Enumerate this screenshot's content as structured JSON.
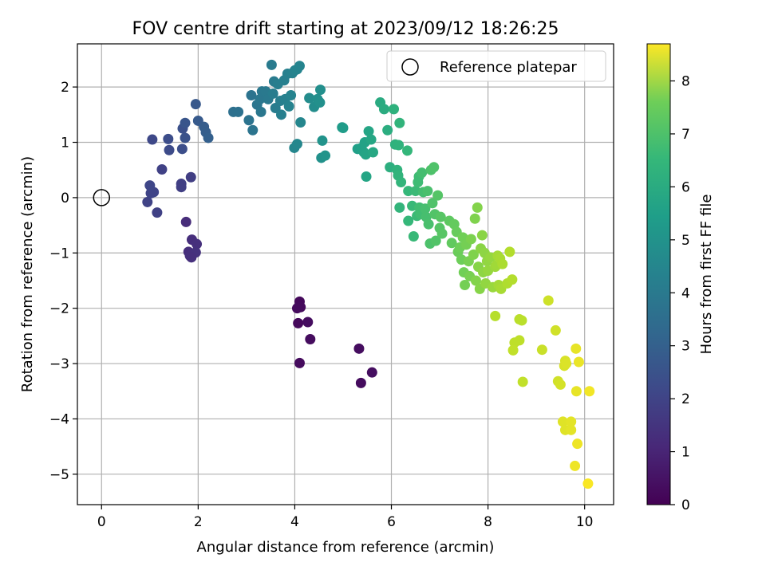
{
  "chart_data": {
    "type": "scatter",
    "title": "FOV centre drift starting at 2023/09/12 18:26:25",
    "xlabel": "Angular distance from reference (arcmin)",
    "ylabel": "Rotation from reference (arcmin)",
    "xlim": [
      -0.5,
      10.6
    ],
    "ylim": [
      -5.55,
      2.78
    ],
    "x_ticks": [
      0,
      2,
      4,
      6,
      8,
      10
    ],
    "y_ticks": [
      2,
      1,
      0,
      -1,
      -2,
      -3,
      -4,
      -5
    ],
    "x_tick_labels": [
      "0",
      "2",
      "4",
      "6",
      "8",
      "10"
    ],
    "y_tick_labels": [
      "2",
      "1",
      "0",
      "−1",
      "−2",
      "−3",
      "−4",
      "−5"
    ],
    "grid": true,
    "legend": {
      "position": "top-right",
      "entries": [
        "Reference platepar"
      ]
    },
    "reference_point": {
      "x": 0,
      "y": 0,
      "label": "Reference platepar"
    },
    "colorbar": {
      "label": "Hours from first FF file",
      "colormap": "viridis",
      "min": 0,
      "max": 8.7,
      "ticks": [
        0,
        1,
        2,
        3,
        4,
        5,
        6,
        7,
        8
      ],
      "tick_labels": [
        "0",
        "1",
        "2",
        "3",
        "4",
        "5",
        "6",
        "7",
        "8"
      ]
    },
    "points": [
      [
        4.1,
        -1.88,
        0.2
      ],
      [
        4.12,
        -1.98,
        0.22
      ],
      [
        4.05,
        -2.0,
        0.25
      ],
      [
        4.07,
        -2.27,
        0.2
      ],
      [
        4.27,
        -2.25,
        0.3
      ],
      [
        4.32,
        -2.56,
        0.28
      ],
      [
        4.1,
        -2.99,
        0.25
      ],
      [
        5.33,
        -2.73,
        0.3
      ],
      [
        5.37,
        -3.35,
        0.28
      ],
      [
        5.6,
        -3.16,
        0.32
      ],
      [
        1.75,
        -0.44,
        1.1
      ],
      [
        1.87,
        -0.76,
        1.15
      ],
      [
        1.97,
        -0.84,
        1.2
      ],
      [
        1.8,
        -0.98,
        1.15
      ],
      [
        1.83,
        -1.05,
        1.2
      ],
      [
        1.88,
        -1.02,
        1.2
      ],
      [
        1.95,
        -0.99,
        1.25
      ],
      [
        1.86,
        -1.08,
        1.2
      ],
      [
        1.85,
        0.37,
        1.6
      ],
      [
        1.65,
        0.25,
        1.65
      ],
      [
        1.65,
        0.19,
        1.65
      ],
      [
        1.25,
        0.51,
        1.7
      ],
      [
        1.15,
        -0.27,
        1.7
      ],
      [
        0.95,
        -0.08,
        1.75
      ],
      [
        1.02,
        0.08,
        1.8
      ],
      [
        1.08,
        0.1,
        1.8
      ],
      [
        1.0,
        0.22,
        1.85
      ],
      [
        1.05,
        1.05,
        1.9
      ],
      [
        1.4,
        0.86,
        2.0
      ],
      [
        1.38,
        1.06,
        2.05
      ],
      [
        1.67,
        0.88,
        2.1
      ],
      [
        1.68,
        1.25,
        2.15
      ],
      [
        1.73,
        1.08,
        2.2
      ],
      [
        1.73,
        1.35,
        2.3
      ],
      [
        1.95,
        1.69,
        2.4
      ],
      [
        2.0,
        1.39,
        2.45
      ],
      [
        2.12,
        1.28,
        2.55
      ],
      [
        2.16,
        1.18,
        2.6
      ],
      [
        2.21,
        1.08,
        2.65
      ],
      [
        2.73,
        1.55,
        3.2
      ],
      [
        2.83,
        1.55,
        3.25
      ],
      [
        3.1,
        1.85,
        3.3
      ],
      [
        3.05,
        1.4,
        3.3
      ],
      [
        3.13,
        1.22,
        3.35
      ],
      [
        3.22,
        1.68,
        3.4
      ],
      [
        3.28,
        1.78,
        3.45
      ],
      [
        3.3,
        1.55,
        3.45
      ],
      [
        3.32,
        1.92,
        3.5
      ],
      [
        3.4,
        1.92,
        3.55
      ],
      [
        3.45,
        1.78,
        3.55
      ],
      [
        3.52,
        2.4,
        3.6
      ],
      [
        3.57,
        2.1,
        3.6
      ],
      [
        3.55,
        1.88,
        3.65
      ],
      [
        3.6,
        1.62,
        3.65
      ],
      [
        3.65,
        2.05,
        3.7
      ],
      [
        3.7,
        1.75,
        3.7
      ],
      [
        3.72,
        1.5,
        3.75
      ],
      [
        3.78,
        2.12,
        3.75
      ],
      [
        3.8,
        1.78,
        3.8
      ],
      [
        3.85,
        2.24,
        3.8
      ],
      [
        3.88,
        1.65,
        3.85
      ],
      [
        3.95,
        2.25,
        3.85
      ],
      [
        3.92,
        1.85,
        3.9
      ],
      [
        4.0,
        2.3,
        3.9
      ],
      [
        4.05,
        2.32,
        3.95
      ],
      [
        4.1,
        2.38,
        3.95
      ],
      [
        4.12,
        1.36,
        4.0
      ],
      [
        3.99,
        0.9,
        4.0
      ],
      [
        4.05,
        0.97,
        4.05
      ],
      [
        4.3,
        1.8,
        4.2
      ],
      [
        4.4,
        1.64,
        4.25
      ],
      [
        4.47,
        1.78,
        4.3
      ],
      [
        4.53,
        1.95,
        4.3
      ],
      [
        4.52,
        1.72,
        4.35
      ],
      [
        4.55,
        0.72,
        4.4
      ],
      [
        4.57,
        1.03,
        4.45
      ],
      [
        4.63,
        0.76,
        4.5
      ],
      [
        4.98,
        1.27,
        4.7
      ],
      [
        5.0,
        1.26,
        4.75
      ],
      [
        5.3,
        0.88,
        4.9
      ],
      [
        5.38,
        0.9,
        4.95
      ],
      [
        5.43,
        0.82,
        5.0
      ],
      [
        5.45,
        1.0,
        5.0
      ],
      [
        5.47,
        0.78,
        5.05
      ],
      [
        5.48,
        0.38,
        5.1
      ],
      [
        5.53,
        1.2,
        5.1
      ],
      [
        5.58,
        1.05,
        5.15
      ],
      [
        5.62,
        0.82,
        5.2
      ],
      [
        5.77,
        1.72,
        5.3
      ],
      [
        5.85,
        1.6,
        5.35
      ],
      [
        5.92,
        1.22,
        5.4
      ],
      [
        5.97,
        0.55,
        5.45
      ],
      [
        6.05,
        1.6,
        5.55
      ],
      [
        6.08,
        0.96,
        5.55
      ],
      [
        6.12,
        0.5,
        5.6
      ],
      [
        6.15,
        0.95,
        5.6
      ],
      [
        6.14,
        0.4,
        5.65
      ],
      [
        6.17,
        1.35,
        5.65
      ],
      [
        6.2,
        0.28,
        5.7
      ],
      [
        6.17,
        -0.18,
        5.7
      ],
      [
        6.33,
        0.85,
        5.75
      ],
      [
        6.35,
        0.12,
        5.8
      ],
      [
        6.35,
        -0.42,
        5.8
      ],
      [
        6.43,
        -0.15,
        5.85
      ],
      [
        6.46,
        -0.7,
        5.85
      ],
      [
        6.5,
        0.12,
        5.9
      ],
      [
        6.53,
        -0.33,
        5.9
      ],
      [
        6.55,
        0.28,
        5.95
      ],
      [
        6.57,
        0.38,
        5.95
      ],
      [
        6.58,
        -0.18,
        6.0
      ],
      [
        6.6,
        -0.3,
        6.0
      ],
      [
        6.63,
        0.45,
        6.05
      ],
      [
        6.66,
        0.1,
        6.05
      ],
      [
        6.7,
        -0.2,
        6.1
      ],
      [
        6.72,
        -0.35,
        6.1
      ],
      [
        6.75,
        0.12,
        6.15
      ],
      [
        6.77,
        -0.48,
        6.15
      ],
      [
        6.8,
        -0.83,
        6.2
      ],
      [
        6.82,
        0.5,
        6.2
      ],
      [
        6.85,
        -0.1,
        6.25
      ],
      [
        6.88,
        0.55,
        6.25
      ],
      [
        6.9,
        -0.3,
        6.3
      ],
      [
        6.92,
        -0.78,
        6.3
      ],
      [
        6.96,
        0.04,
        6.35
      ],
      [
        7.0,
        -0.55,
        6.35
      ],
      [
        7.02,
        -0.35,
        6.4
      ],
      [
        7.05,
        -0.65,
        6.4
      ],
      [
        7.2,
        -0.42,
        6.5
      ],
      [
        7.25,
        -0.82,
        6.55
      ],
      [
        7.3,
        -0.48,
        6.6
      ],
      [
        7.35,
        -0.62,
        6.65
      ],
      [
        7.38,
        -0.98,
        6.7
      ],
      [
        7.42,
        -0.9,
        6.75
      ],
      [
        7.45,
        -1.12,
        6.75
      ],
      [
        7.48,
        -0.72,
        6.8
      ],
      [
        7.5,
        -1.35,
        6.8
      ],
      [
        7.52,
        -1.58,
        6.85
      ],
      [
        7.55,
        -0.85,
        6.85
      ],
      [
        7.6,
        -1.15,
        6.9
      ],
      [
        7.62,
        -1.42,
        6.9
      ],
      [
        7.65,
        -0.75,
        6.95
      ],
      [
        7.7,
        -1.03,
        7.0
      ],
      [
        7.73,
        -0.38,
        7.0
      ],
      [
        7.75,
        -1.5,
        7.05
      ],
      [
        7.78,
        -0.18,
        7.05
      ],
      [
        7.8,
        -1.25,
        7.1
      ],
      [
        7.83,
        -1.65,
        7.1
      ],
      [
        7.85,
        -0.92,
        7.15
      ],
      [
        7.88,
        -0.68,
        7.15
      ],
      [
        7.9,
        -1.35,
        7.2
      ],
      [
        7.93,
        -1.0,
        7.2
      ],
      [
        7.95,
        -1.55,
        7.25
      ],
      [
        7.98,
        -1.15,
        7.25
      ],
      [
        8.0,
        -1.32,
        7.3
      ],
      [
        8.05,
        -1.08,
        7.3
      ],
      [
        8.1,
        -1.62,
        7.35
      ],
      [
        8.15,
        -1.25,
        7.4
      ],
      [
        8.18,
        -1.22,
        7.45
      ],
      [
        8.2,
        -1.05,
        7.5
      ],
      [
        8.22,
        -1.58,
        7.5
      ],
      [
        8.25,
        -1.1,
        7.55
      ],
      [
        8.27,
        -1.65,
        7.55
      ],
      [
        8.3,
        -1.2,
        7.6
      ],
      [
        8.4,
        -1.55,
        7.65
      ],
      [
        8.45,
        -0.98,
        7.7
      ],
      [
        8.5,
        -1.48,
        7.7
      ],
      [
        8.15,
        -2.14,
        7.75
      ],
      [
        8.65,
        -2.2,
        7.8
      ],
      [
        8.7,
        -2.22,
        7.8
      ],
      [
        8.55,
        -2.62,
        7.85
      ],
      [
        8.65,
        -2.58,
        7.85
      ],
      [
        8.52,
        -2.76,
        7.9
      ],
      [
        8.72,
        -3.33,
        7.9
      ],
      [
        9.12,
        -2.75,
        8.0
      ],
      [
        9.25,
        -1.86,
        8.05
      ],
      [
        9.4,
        -2.4,
        8.1
      ],
      [
        9.45,
        -3.32,
        8.1
      ],
      [
        9.5,
        -3.38,
        8.15
      ],
      [
        9.58,
        -3.04,
        8.2
      ],
      [
        9.6,
        -2.95,
        8.2
      ],
      [
        9.62,
        -3.0,
        8.25
      ],
      [
        9.55,
        -4.05,
        8.3
      ],
      [
        9.6,
        -4.2,
        8.3
      ],
      [
        9.72,
        -4.05,
        8.35
      ],
      [
        9.72,
        -4.2,
        8.35
      ],
      [
        9.82,
        -2.73,
        8.4
      ],
      [
        9.83,
        -3.5,
        8.4
      ],
      [
        9.88,
        -2.97,
        8.45
      ],
      [
        9.85,
        -4.45,
        8.5
      ],
      [
        9.8,
        -4.85,
        8.5
      ],
      [
        10.1,
        -3.5,
        8.55
      ],
      [
        10.07,
        -5.17,
        8.65
      ]
    ]
  }
}
